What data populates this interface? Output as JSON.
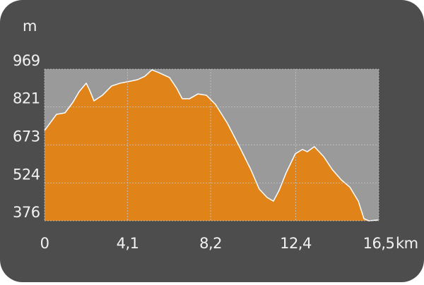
{
  "chart_data": {
    "type": "area",
    "y_label": "m",
    "x_label": "km",
    "x": [
      0,
      0.59,
      1.01,
      1.4,
      1.71,
      2.06,
      2.23,
      2.44,
      2.86,
      3.31,
      3.73,
      4.26,
      4.6,
      4.95,
      5.3,
      5.65,
      6.17,
      6.52,
      6.8,
      7.15,
      7.57,
      7.99,
      8.44,
      9.03,
      9.66,
      10.18,
      10.6,
      10.99,
      11.3,
      11.58,
      11.93,
      12.38,
      12.73,
      12.97,
      13.32,
      13.78,
      14.2,
      14.65,
      15.07,
      15.49,
      15.77,
      16.01,
      16.46
    ],
    "values": [
      729,
      792,
      798,
      839,
      881,
      914,
      886,
      845,
      867,
      903,
      914,
      922,
      928,
      941,
      966,
      955,
      936,
      895,
      853,
      853,
      872,
      867,
      831,
      757,
      660,
      577,
      500,
      467,
      453,
      495,
      564,
      638,
      655,
      646,
      666,
      627,
      577,
      536,
      508,
      453,
      384,
      376,
      379
    ],
    "color": "#e0841a",
    "xlim": [
      0,
      16.5
    ],
    "xticks": [
      0,
      {
        "value": 4.1,
        "label": "4,1"
      },
      {
        "value": 8.2,
        "label": "8,2"
      },
      {
        "value": 12.4,
        "label": "12,4"
      },
      {
        "value": 16.5,
        "label": "16,5"
      }
    ],
    "ylim": [
      376,
      969
    ],
    "yticks": [
      376,
      524,
      673,
      821,
      969
    ],
    "grid": true
  }
}
